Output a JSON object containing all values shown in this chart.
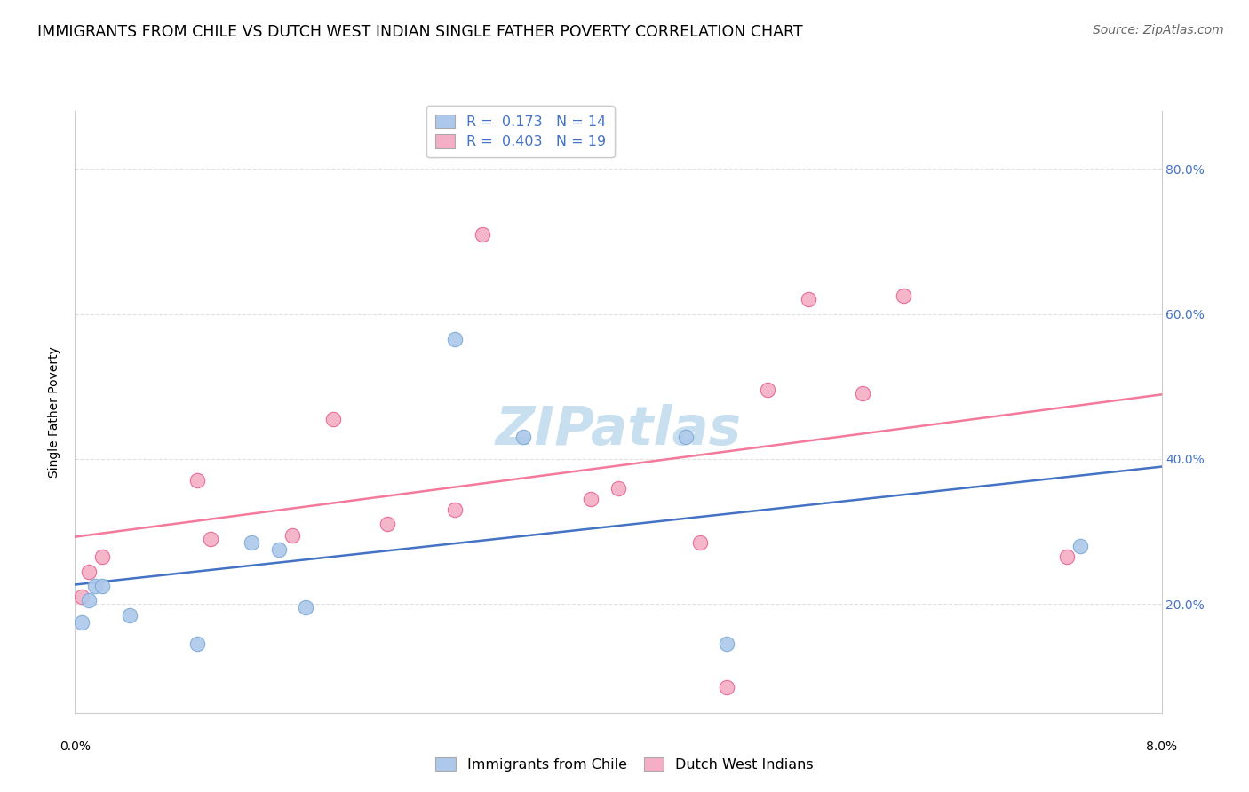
{
  "title": "IMMIGRANTS FROM CHILE VS DUTCH WEST INDIAN SINGLE FATHER POVERTY CORRELATION CHART",
  "source": "Source: ZipAtlas.com",
  "ylabel": "Single Father Poverty",
  "ylabel_right_ticks": [
    "20.0%",
    "40.0%",
    "60.0%",
    "80.0%"
  ],
  "ylabel_right_vals": [
    0.2,
    0.4,
    0.6,
    0.8
  ],
  "xmin": 0.0,
  "xmax": 0.08,
  "ymin": 0.05,
  "ymax": 0.88,
  "watermark": "ZIPatlas",
  "chile_x": [
    0.0005,
    0.001,
    0.0015,
    0.002,
    0.004,
    0.009,
    0.013,
    0.015,
    0.017,
    0.028,
    0.033,
    0.045,
    0.048,
    0.074
  ],
  "chile_y": [
    0.175,
    0.205,
    0.225,
    0.225,
    0.185,
    0.145,
    0.285,
    0.275,
    0.195,
    0.565,
    0.43,
    0.43,
    0.145,
    0.28
  ],
  "dutch_x": [
    0.0005,
    0.001,
    0.002,
    0.009,
    0.01,
    0.016,
    0.019,
    0.023,
    0.028,
    0.03,
    0.038,
    0.04,
    0.046,
    0.048,
    0.051,
    0.054,
    0.058,
    0.061,
    0.073
  ],
  "dutch_y": [
    0.21,
    0.245,
    0.265,
    0.37,
    0.29,
    0.295,
    0.455,
    0.31,
    0.33,
    0.71,
    0.345,
    0.36,
    0.285,
    0.085,
    0.495,
    0.62,
    0.49,
    0.625,
    0.265
  ],
  "chile_color": "#adc8eb",
  "dutch_color": "#f5aec5",
  "chile_line_color": "#4472c4",
  "dutch_line_color": "#f4799a",
  "chile_edge_color": "#7baad4",
  "dutch_edge_color": "#e86090",
  "marker_size": 140,
  "grid_color": "#e0e0e0",
  "background_color": "#ffffff",
  "title_fontsize": 12.5,
  "axis_label_fontsize": 10,
  "tick_fontsize": 10,
  "legend_fontsize": 11.5,
  "source_fontsize": 10,
  "watermark_fontsize": 44,
  "watermark_color": "#c8dff0",
  "right_axis_color": "#4472c4"
}
